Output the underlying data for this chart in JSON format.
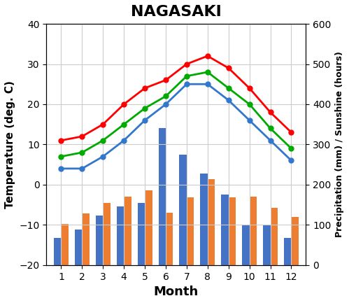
{
  "title": "NAGASAKI",
  "months": [
    1,
    2,
    3,
    4,
    5,
    6,
    7,
    8,
    9,
    10,
    11,
    12
  ],
  "temp_max": [
    11,
    12,
    15,
    20,
    24,
    26,
    30,
    32,
    29,
    24,
    18,
    13
  ],
  "temp_mean": [
    7,
    8,
    11,
    15,
    19,
    22,
    27,
    28,
    24,
    20,
    14,
    9
  ],
  "temp_min": [
    4,
    4,
    7,
    11,
    16,
    20,
    25,
    25,
    21,
    16,
    11,
    6
  ],
  "precipitation": [
    68,
    88,
    123,
    145,
    155,
    340,
    275,
    228,
    175,
    100,
    98,
    68
  ],
  "sunshine": [
    103,
    128,
    155,
    170,
    185,
    130,
    168,
    213,
    168,
    170,
    143,
    120
  ],
  "temp_max_color": "#ff0000",
  "temp_mean_color": "#00aa00",
  "temp_min_color": "#3377cc",
  "precip_color": "#4472c4",
  "sunshine_color": "#ed7d31",
  "xlabel": "Month",
  "ylabel_left": "Temperature (deg. C)",
  "ylabel_right": "Precipitation (mm) / Sunshine (hours)",
  "ylim_left": [
    -20,
    40
  ],
  "ylim_right": [
    0,
    600
  ],
  "yticks_left": [
    -20,
    -10,
    0,
    10,
    20,
    30,
    40
  ],
  "yticks_right": [
    0,
    100,
    200,
    300,
    400,
    500,
    600
  ],
  "bar_width": 0.35
}
